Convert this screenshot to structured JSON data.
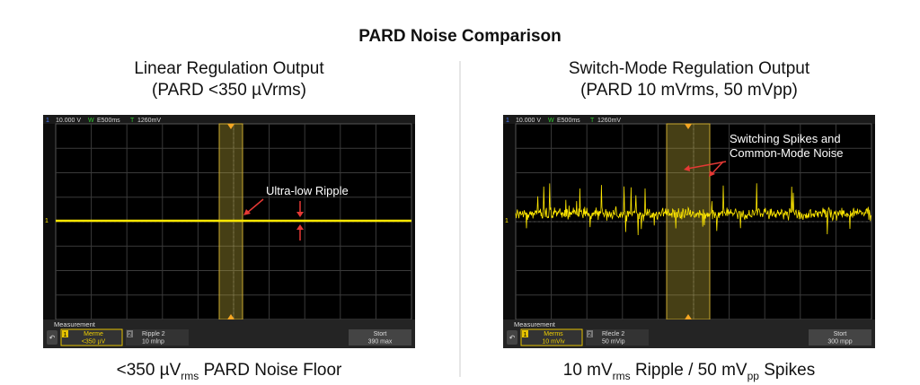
{
  "title": "PARD Noise Comparison",
  "panels": [
    {
      "heading": [
        "Linear Regulation Output",
        "(PARD <350 µVrms)"
      ],
      "scope": {
        "channel": "1",
        "volts": "10.000 V",
        "w": "W",
        "timebase": "E500ms",
        "t": "T",
        "trigger": "1260mV",
        "marker": "1"
      },
      "annotation": [
        "Ultra-low Ripple"
      ],
      "measurement": {
        "label": "Measurement",
        "key1": [
          "1",
          "Merme",
          "<350 µV"
        ],
        "key2": [
          "2",
          "Ripple 2",
          "10 mlnp"
        ],
        "key3": [
          "Stort",
          "390 max"
        ]
      },
      "caption": [
        "<350 µV",
        "rms",
        " PARD Noise Floor"
      ]
    },
    {
      "heading": [
        "Switch-Mode Regulation Output",
        "(PARD 10 mVrms, 50 mVpp)"
      ],
      "scope": {
        "channel": "1",
        "volts": "10.000 V",
        "w": "W",
        "timebase": "E500ms",
        "t": "T",
        "trigger": "1260mV",
        "marker": "1"
      },
      "annotation": [
        "Switching Spikes and",
        "Common-Mode Noise"
      ],
      "measurement": {
        "label": "Measurement",
        "key1": [
          "1",
          "Merms",
          "10 mViv"
        ],
        "key2": [
          "2",
          "Rlecle 2",
          "50 mVip"
        ],
        "key3": [
          "Stort",
          "300 mpp"
        ]
      },
      "caption": [
        "10 mV",
        "rms",
        " Ripple / 50 mV",
        "pp",
        " Spikes"
      ]
    }
  ]
}
